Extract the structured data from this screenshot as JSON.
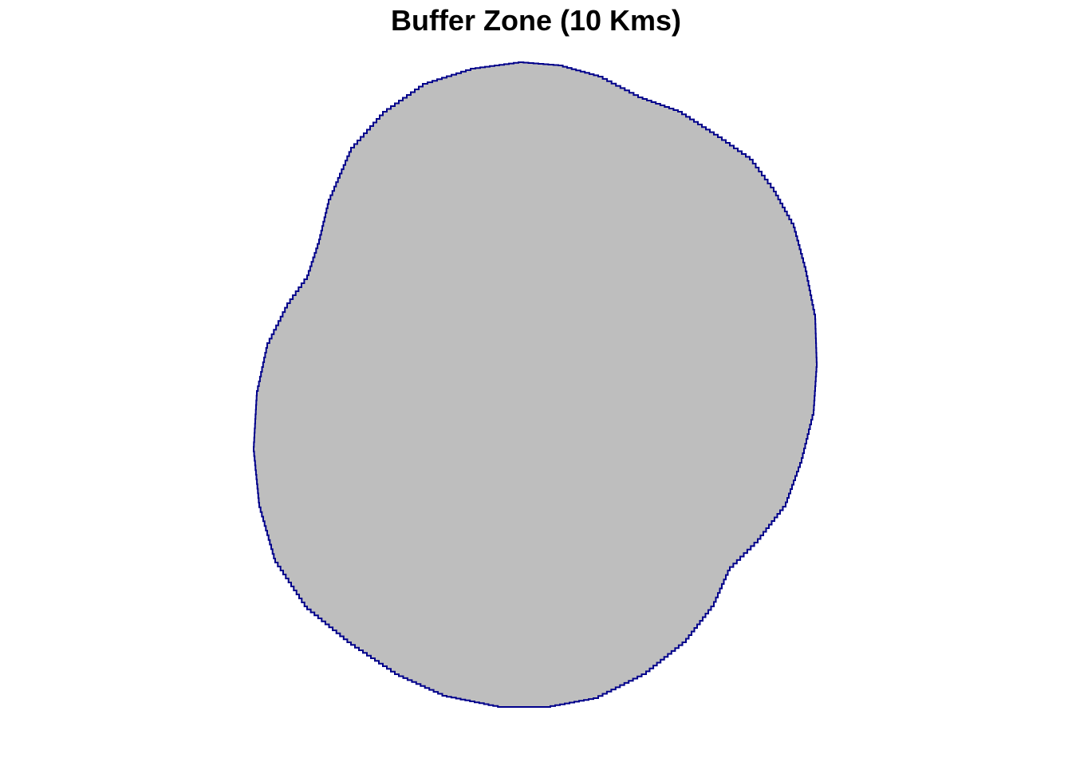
{
  "map": {
    "title": "Buffer Zone (10 Kms)",
    "colors": {
      "fill": "#BEBEBE",
      "outline": "#00008B",
      "background": "#FFFFFF"
    }
  }
}
